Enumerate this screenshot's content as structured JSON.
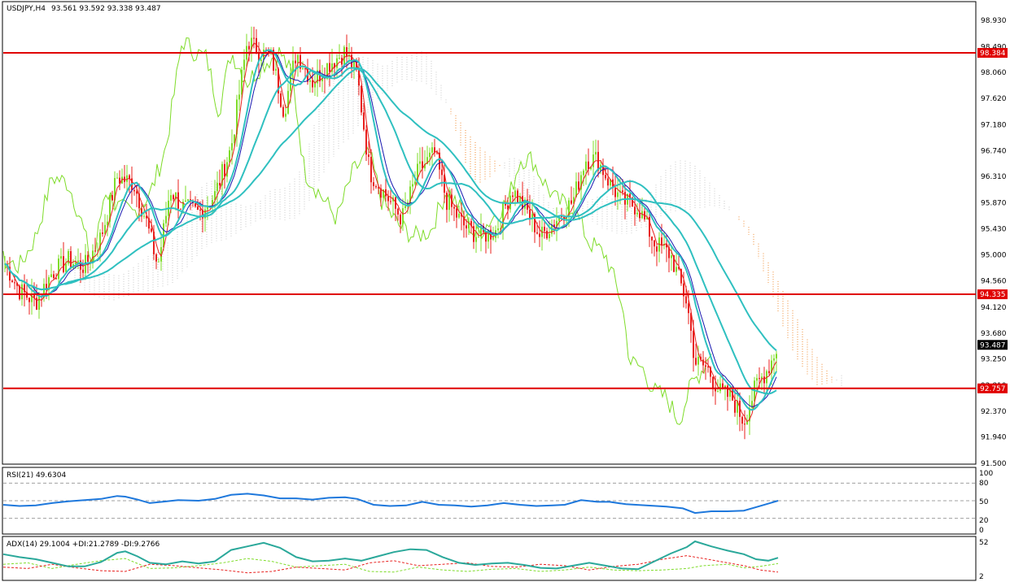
{
  "header": {
    "symbol_timeframe": "USDJPY,H4",
    "ohlc": "93.561 93.592 93.338 93.487"
  },
  "price_panel": {
    "scale_labels": [
      "98.930",
      "98.490",
      "98.060",
      "97.620",
      "97.180",
      "96.740",
      "96.310",
      "95.870",
      "95.430",
      "95.000",
      "94.560",
      "94.120",
      "93.680",
      "93.250",
      "92.810",
      "92.370",
      "91.940",
      "91.500"
    ],
    "levels": [
      {
        "value": "98.384",
        "price": 98.384
      },
      {
        "value": "94.335",
        "price": 94.335
      },
      {
        "value": "92.757",
        "price": 92.757
      }
    ],
    "current_price": "93.487",
    "colors": {
      "bull": "#7fdc2a",
      "bear": "#e8201e",
      "level": "#e00000",
      "ma_fast": "#e8201e",
      "ma_mid": "#2fc0c0",
      "kijun": "#1818b0",
      "chikou": "#7fdc2a",
      "cloud_bull": "#c8c8c8",
      "cloud_bear": "#f08a30"
    }
  },
  "rsi_panel": {
    "title": "RSI(21) 49.6304",
    "scale_labels": [
      "100",
      "80",
      "50",
      "20",
      "0"
    ],
    "line_color": "#1e78dc"
  },
  "adx_panel": {
    "title": "ADX(14) 29.1004 +DI:21.2789 -DI:9.2766",
    "scale_labels": [
      "52",
      "2"
    ],
    "colors": {
      "adx": "#2aa89a",
      "plus_di": "#7fdc2a",
      "minus_di": "#e8201e"
    }
  },
  "chart_data": {
    "type": "line",
    "title": "USDJPY,H4",
    "ylim": [
      91.5,
      98.93
    ],
    "close_path": [
      [
        0,
        94.9
      ],
      [
        20,
        94.4
      ],
      [
        40,
        94.2
      ],
      [
        60,
        94.7
      ],
      [
        80,
        94.9
      ],
      [
        100,
        94.8
      ],
      [
        120,
        95.3
      ],
      [
        140,
        96.3
      ],
      [
        160,
        96.2
      ],
      [
        175,
        95.6
      ],
      [
        190,
        94.8
      ],
      [
        205,
        96.1
      ],
      [
        220,
        95.8
      ],
      [
        240,
        95.7
      ],
      [
        260,
        96.0
      ],
      [
        280,
        96.8
      ],
      [
        300,
        98.6
      ],
      [
        315,
        98.4
      ],
      [
        330,
        98.3
      ],
      [
        345,
        97.4
      ],
      [
        360,
        98.4
      ],
      [
        380,
        97.9
      ],
      [
        400,
        98.2
      ],
      [
        420,
        98.4
      ],
      [
        435,
        98.0
      ],
      [
        450,
        96.4
      ],
      [
        470,
        96.0
      ],
      [
        490,
        95.6
      ],
      [
        510,
        96.4
      ],
      [
        530,
        96.7
      ],
      [
        545,
        95.9
      ],
      [
        565,
        95.5
      ],
      [
        585,
        95.3
      ],
      [
        605,
        95.4
      ],
      [
        625,
        96.1
      ],
      [
        645,
        95.7
      ],
      [
        660,
        95.3
      ],
      [
        680,
        95.6
      ],
      [
        700,
        95.9
      ],
      [
        715,
        96.6
      ],
      [
        730,
        96.6
      ],
      [
        745,
        96.2
      ],
      [
        760,
        95.9
      ],
      [
        780,
        95.8
      ],
      [
        800,
        95.2
      ],
      [
        820,
        95.0
      ],
      [
        840,
        94.2
      ],
      [
        850,
        93.2
      ],
      [
        865,
        93.1
      ],
      [
        880,
        92.7
      ],
      [
        895,
        92.6
      ],
      [
        910,
        92.2
      ],
      [
        925,
        92.8
      ],
      [
        940,
        93.1
      ],
      [
        952,
        93.49
      ]
    ],
    "rsi": [
      [
        0,
        43
      ],
      [
        20,
        41
      ],
      [
        40,
        42
      ],
      [
        60,
        46
      ],
      [
        80,
        49
      ],
      [
        100,
        51
      ],
      [
        120,
        53
      ],
      [
        140,
        58
      ],
      [
        150,
        57
      ],
      [
        165,
        52
      ],
      [
        180,
        46
      ],
      [
        195,
        48
      ],
      [
        215,
        51
      ],
      [
        240,
        50
      ],
      [
        260,
        53
      ],
      [
        280,
        60
      ],
      [
        300,
        62
      ],
      [
        320,
        59
      ],
      [
        340,
        54
      ],
      [
        360,
        54
      ],
      [
        380,
        52
      ],
      [
        400,
        55
      ],
      [
        420,
        56
      ],
      [
        435,
        53
      ],
      [
        455,
        43
      ],
      [
        475,
        41
      ],
      [
        495,
        42
      ],
      [
        515,
        48
      ],
      [
        535,
        43
      ],
      [
        555,
        42
      ],
      [
        575,
        40
      ],
      [
        595,
        42
      ],
      [
        615,
        46
      ],
      [
        635,
        43
      ],
      [
        655,
        41
      ],
      [
        675,
        42
      ],
      [
        690,
        43
      ],
      [
        710,
        51
      ],
      [
        730,
        48
      ],
      [
        745,
        48
      ],
      [
        765,
        44
      ],
      [
        790,
        42
      ],
      [
        815,
        40
      ],
      [
        835,
        37
      ],
      [
        850,
        29
      ],
      [
        870,
        32
      ],
      [
        890,
        32
      ],
      [
        910,
        33
      ],
      [
        925,
        39
      ],
      [
        940,
        45
      ],
      [
        952,
        50
      ]
    ],
    "adx": [
      [
        0,
        34
      ],
      [
        20,
        30
      ],
      [
        40,
        27
      ],
      [
        60,
        22
      ],
      [
        80,
        17
      ],
      [
        100,
        17
      ],
      [
        120,
        23
      ],
      [
        140,
        36
      ],
      [
        150,
        38
      ],
      [
        165,
        31
      ],
      [
        180,
        22
      ],
      [
        200,
        20
      ],
      [
        220,
        24
      ],
      [
        240,
        21
      ],
      [
        260,
        24
      ],
      [
        280,
        40
      ],
      [
        300,
        45
      ],
      [
        320,
        50
      ],
      [
        340,
        43
      ],
      [
        360,
        30
      ],
      [
        380,
        24
      ],
      [
        400,
        25
      ],
      [
        420,
        28
      ],
      [
        440,
        25
      ],
      [
        460,
        31
      ],
      [
        480,
        37
      ],
      [
        500,
        41
      ],
      [
        520,
        40
      ],
      [
        540,
        30
      ],
      [
        560,
        22
      ],
      [
        580,
        19
      ],
      [
        600,
        21
      ],
      [
        620,
        22
      ],
      [
        640,
        19
      ],
      [
        660,
        15
      ],
      [
        680,
        14
      ],
      [
        700,
        18
      ],
      [
        720,
        22
      ],
      [
        740,
        18
      ],
      [
        760,
        14
      ],
      [
        780,
        13
      ],
      [
        800,
        24
      ],
      [
        820,
        35
      ],
      [
        840,
        44
      ],
      [
        850,
        52
      ],
      [
        870,
        45
      ],
      [
        890,
        39
      ],
      [
        910,
        34
      ],
      [
        925,
        27
      ],
      [
        940,
        25
      ],
      [
        952,
        29
      ]
    ],
    "plus_di": [
      [
        0,
        20
      ],
      [
        30,
        22
      ],
      [
        60,
        14
      ],
      [
        90,
        20
      ],
      [
        120,
        25
      ],
      [
        150,
        28
      ],
      [
        180,
        14
      ],
      [
        210,
        15
      ],
      [
        240,
        18
      ],
      [
        270,
        22
      ],
      [
        300,
        28
      ],
      [
        330,
        24
      ],
      [
        360,
        16
      ],
      [
        390,
        18
      ],
      [
        420,
        20
      ],
      [
        450,
        10
      ],
      [
        480,
        9
      ],
      [
        510,
        16
      ],
      [
        540,
        12
      ],
      [
        570,
        10
      ],
      [
        600,
        13
      ],
      [
        630,
        14
      ],
      [
        660,
        10
      ],
      [
        690,
        12
      ],
      [
        720,
        16
      ],
      [
        750,
        12
      ],
      [
        780,
        11
      ],
      [
        810,
        12
      ],
      [
        840,
        14
      ],
      [
        860,
        18
      ],
      [
        890,
        20
      ],
      [
        910,
        15
      ],
      [
        930,
        17
      ],
      [
        952,
        21
      ]
    ],
    "minus_di": [
      [
        0,
        16
      ],
      [
        30,
        14
      ],
      [
        60,
        20
      ],
      [
        90,
        15
      ],
      [
        120,
        11
      ],
      [
        150,
        10
      ],
      [
        180,
        20
      ],
      [
        210,
        18
      ],
      [
        240,
        15
      ],
      [
        270,
        12
      ],
      [
        300,
        8
      ],
      [
        330,
        10
      ],
      [
        360,
        16
      ],
      [
        390,
        14
      ],
      [
        420,
        12
      ],
      [
        450,
        22
      ],
      [
        480,
        25
      ],
      [
        510,
        18
      ],
      [
        540,
        20
      ],
      [
        570,
        22
      ],
      [
        600,
        17
      ],
      [
        630,
        16
      ],
      [
        660,
        20
      ],
      [
        690,
        18
      ],
      [
        720,
        12
      ],
      [
        750,
        17
      ],
      [
        780,
        20
      ],
      [
        810,
        27
      ],
      [
        840,
        32
      ],
      [
        860,
        28
      ],
      [
        890,
        22
      ],
      [
        910,
        18
      ],
      [
        930,
        12
      ],
      [
        952,
        9
      ]
    ]
  }
}
